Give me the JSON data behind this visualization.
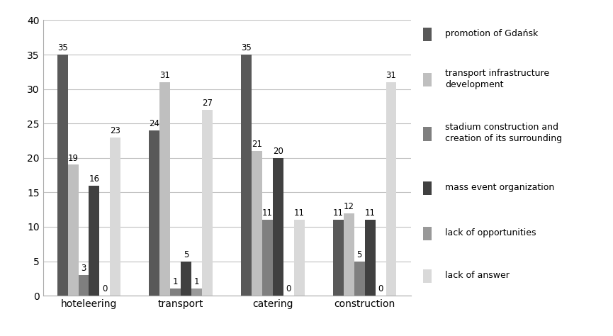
{
  "categories": [
    "hoteleering",
    "transport",
    "catering",
    "construction"
  ],
  "series": [
    {
      "label": "promotion of Gdańsk",
      "color": "#595959",
      "values": [
        35,
        24,
        35,
        11
      ]
    },
    {
      "label": "transport infrastructure\ndevelopment",
      "color": "#bfbfbf",
      "values": [
        19,
        31,
        21,
        12
      ]
    },
    {
      "label": "stadium construction and\ncreation of its surrounding",
      "color": "#7f7f7f",
      "values": [
        3,
        1,
        11,
        5
      ]
    },
    {
      "label": "mass event organization",
      "color": "#404040",
      "values": [
        16,
        5,
        20,
        11
      ]
    },
    {
      "label": "lack of opportunities",
      "color": "#999999",
      "values": [
        0,
        1,
        0,
        0
      ]
    },
    {
      "label": "lack of answer",
      "color": "#d9d9d9",
      "values": [
        23,
        27,
        11,
        31
      ]
    }
  ],
  "ylim": [
    0,
    40
  ],
  "yticks": [
    0,
    5,
    10,
    15,
    20,
    25,
    30,
    35,
    40
  ],
  "bar_width": 0.115,
  "background_color": "#ffffff",
  "grid_color": "#c0c0c0",
  "label_fontsize": 8.5,
  "legend_fontsize": 9,
  "figsize": [
    8.65,
    4.74
  ],
  "dpi": 100
}
